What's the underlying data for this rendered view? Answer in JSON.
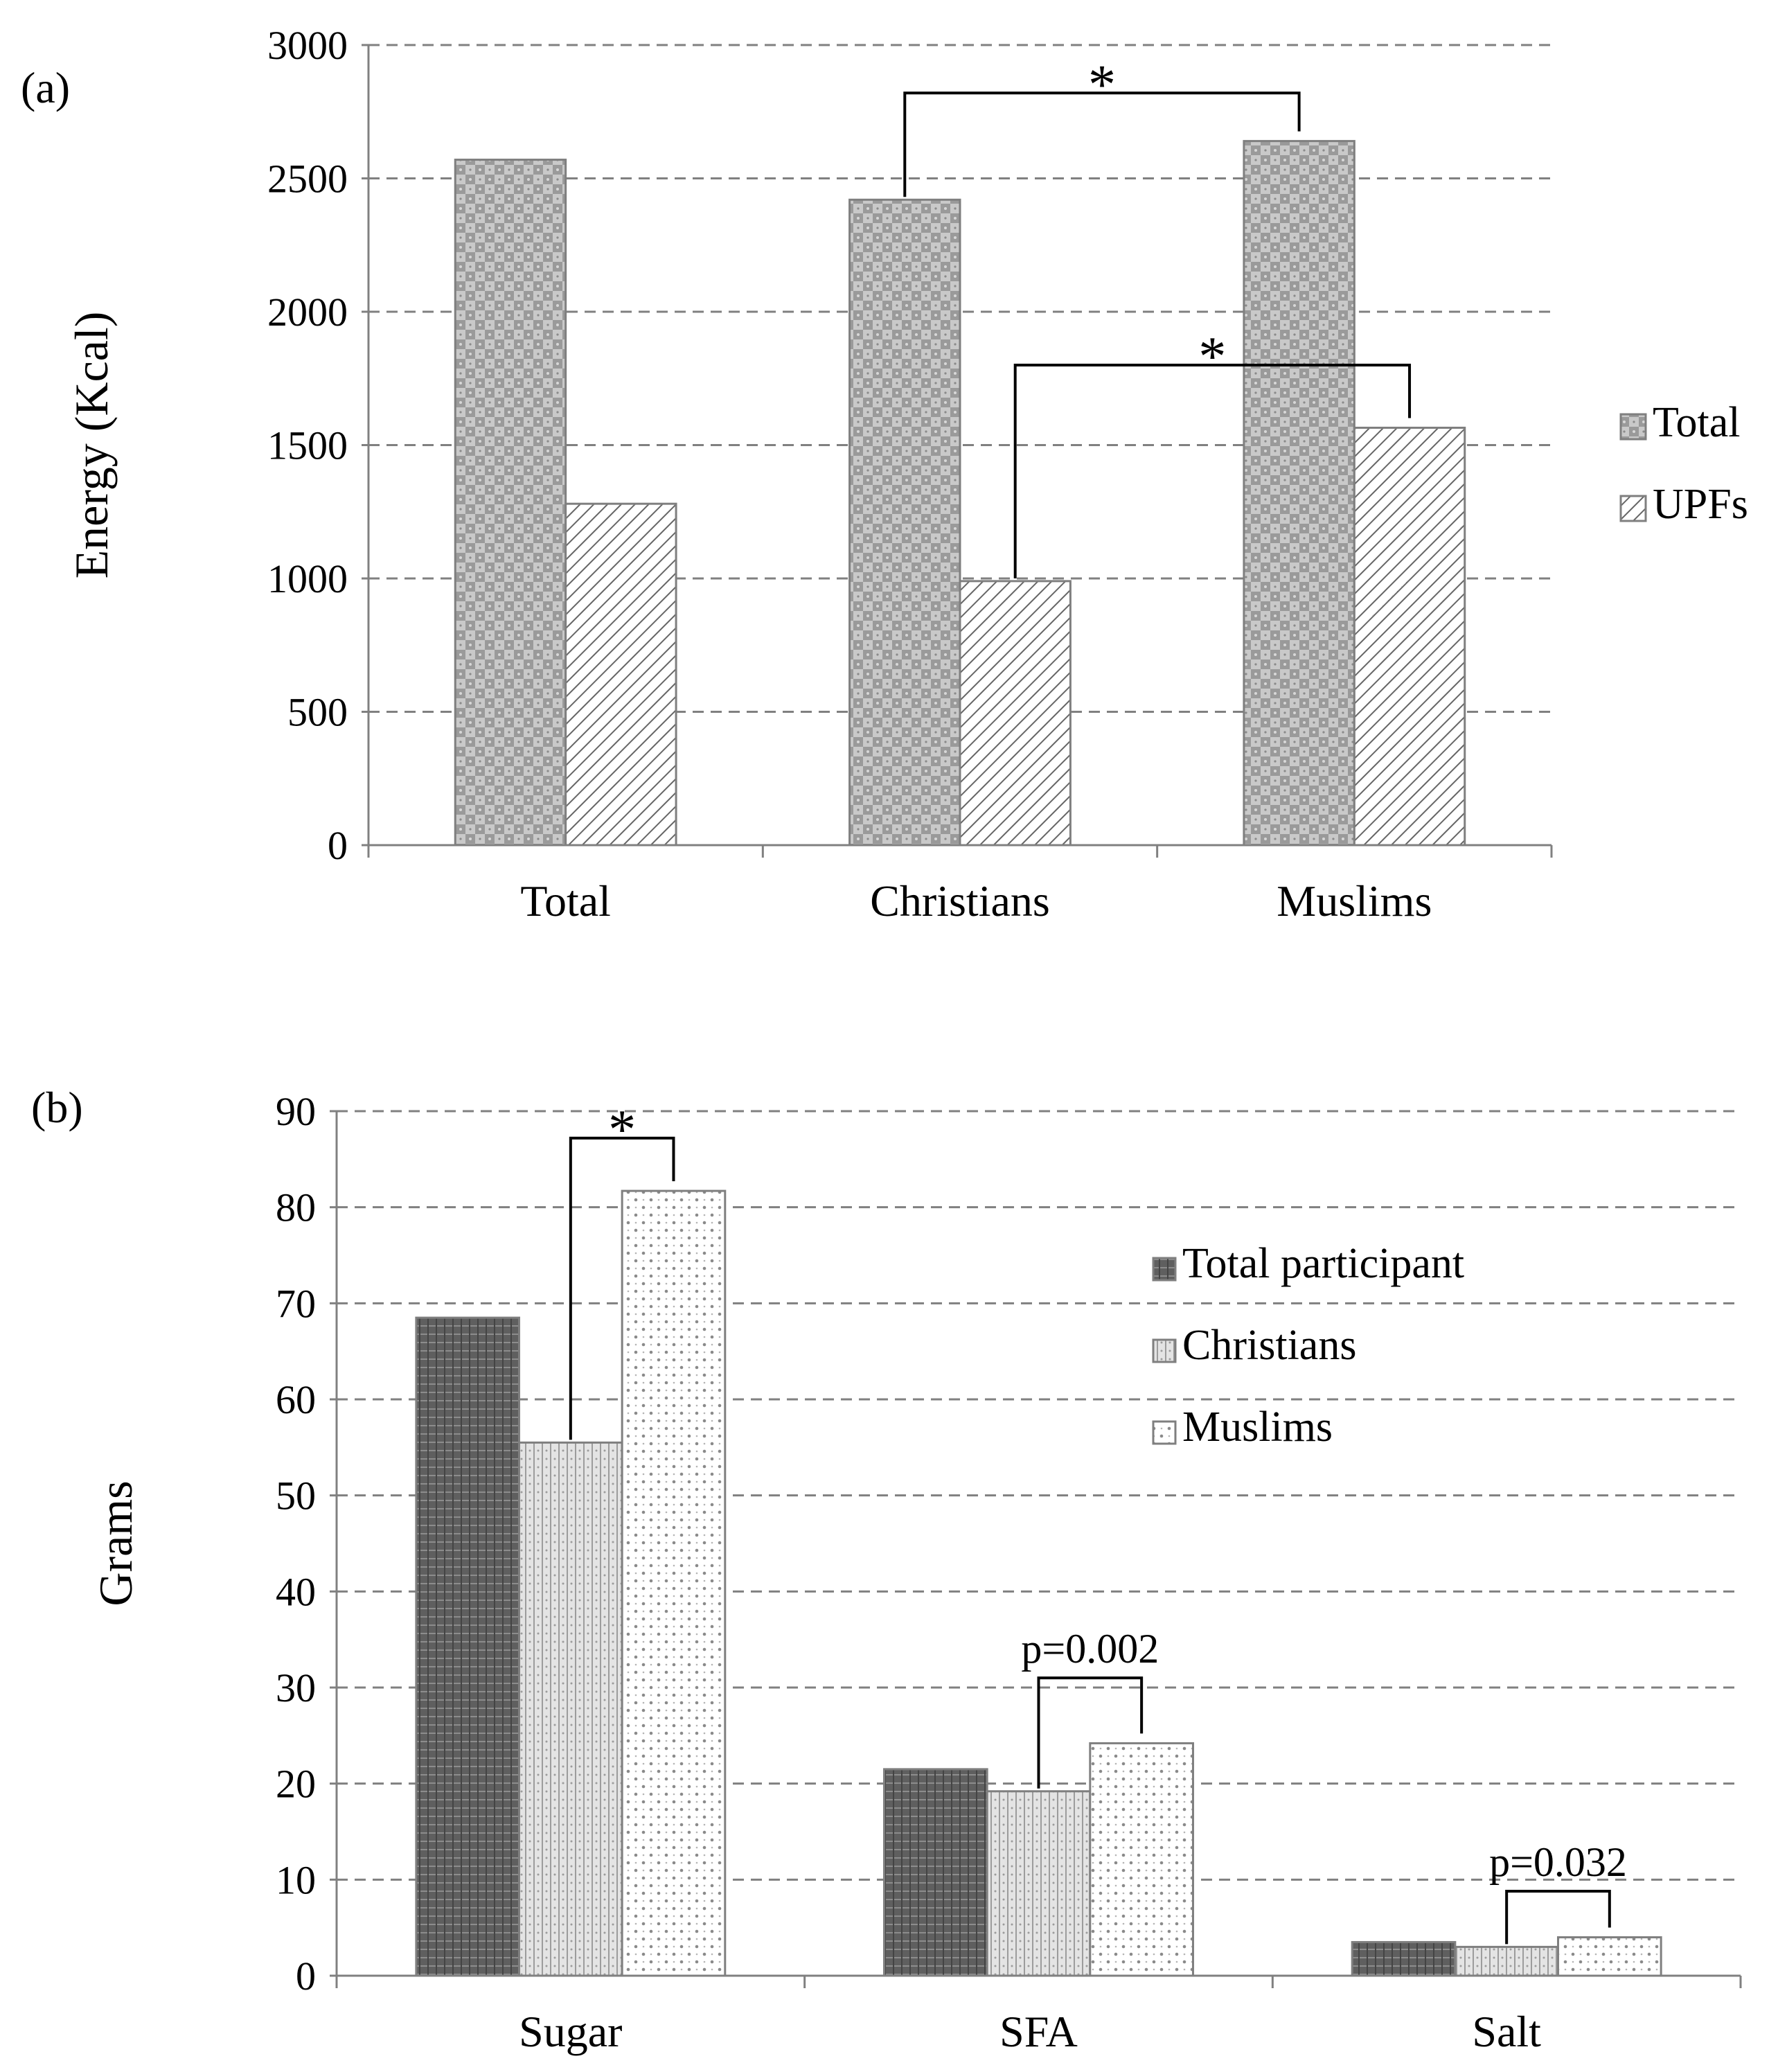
{
  "chart_data": [
    {
      "panel_label": "(a)",
      "type": "bar",
      "categories": [
        "Total",
        "Christians",
        "Muslims"
      ],
      "series": [
        {
          "name": "Total",
          "values": [
            2570,
            2420,
            2640
          ],
          "pattern": "checker"
        },
        {
          "name": "UPFs",
          "values": [
            1280,
            990,
            1565
          ],
          "pattern": "hatch"
        }
      ],
      "ylabel": "Energy (Kcal)",
      "xlabel": "",
      "ylim": [
        0,
        3000
      ],
      "yticks": [
        "0",
        "500",
        "1000",
        "1500",
        "2000",
        "2500",
        "3000"
      ],
      "grid": true,
      "legend_position": "right",
      "annotations": [
        {
          "text": "*",
          "from": {
            "category": "Christians",
            "series": "Total"
          },
          "to": {
            "category": "Muslims",
            "series": "Total"
          },
          "level": 2820
        },
        {
          "text": "*",
          "from": {
            "category": "Christians",
            "series": "UPFs"
          },
          "to": {
            "category": "Muslims",
            "series": "UPFs"
          },
          "level": 1800
        }
      ]
    },
    {
      "panel_label": "(b)",
      "type": "bar",
      "categories": [
        "Sugar",
        "SFA",
        "Salt"
      ],
      "series": [
        {
          "name": "Total participant",
          "values": [
            68.5,
            21.5,
            3.5
          ],
          "pattern": "dark"
        },
        {
          "name": "Christians",
          "values": [
            55.5,
            19.2,
            3.0
          ],
          "pattern": "light-lines"
        },
        {
          "name": "Muslims",
          "values": [
            81.7,
            24.2,
            4.0
          ],
          "pattern": "dots"
        }
      ],
      "ylabel": "Grams",
      "xlabel": "",
      "ylim": [
        0,
        90
      ],
      "yticks": [
        "0",
        "10",
        "20",
        "30",
        "40",
        "50",
        "60",
        "70",
        "80",
        "90"
      ],
      "grid": true,
      "legend_position": "top-right",
      "annotations": [
        {
          "text": "*",
          "category": "Sugar",
          "from_series": "Christians",
          "to_series": "Muslims",
          "level": 87.2
        },
        {
          "text": "p=0.002",
          "category": "SFA",
          "from_series": "Christians",
          "to_series": "Muslims",
          "level": 31.0
        },
        {
          "text": "p=0.032",
          "category": "Salt",
          "from_series": "Christians",
          "to_series": "Muslims",
          "level": 8.8
        }
      ]
    }
  ]
}
